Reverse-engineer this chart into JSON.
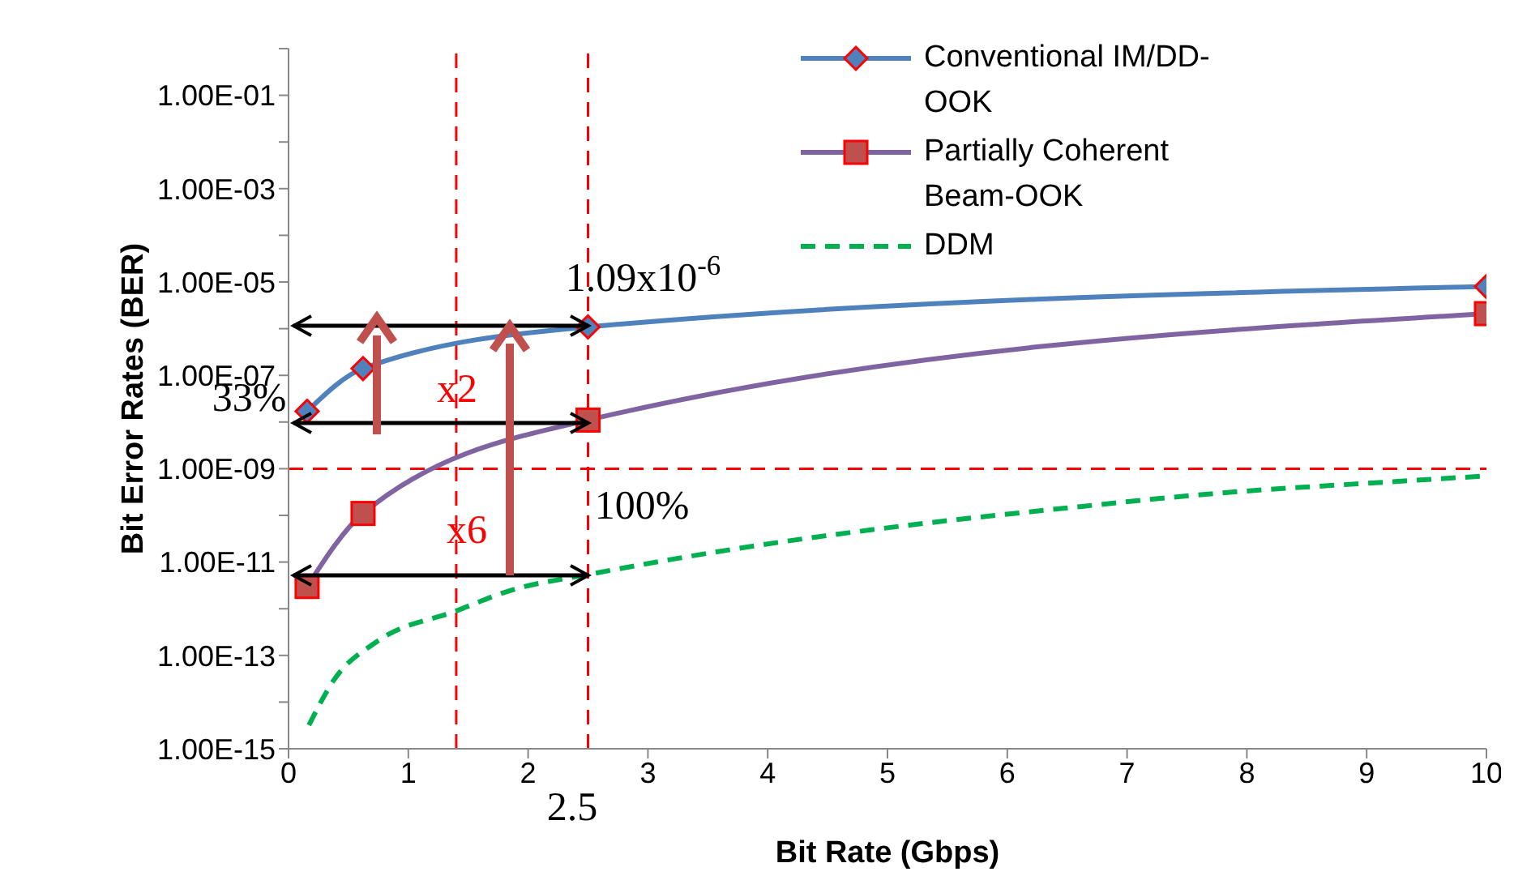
{
  "chart_data": {
    "type": "line",
    "xlabel": "Bit Rate (Gbps)",
    "ylabel": "Bit Error Rates (BER)",
    "log": "y",
    "xlim": [
      0,
      10
    ],
    "xticks": [
      0,
      1,
      2,
      3,
      4,
      5,
      6,
      7,
      8,
      9,
      10
    ],
    "ylim": [
      1e-15,
      1
    ],
    "yticks": [
      {
        "value": 1e-15,
        "label": "1.00E-15"
      },
      {
        "value": 1e-14,
        "label": null
      },
      {
        "value": 1e-13,
        "label": "1.00E-13"
      },
      {
        "value": 1e-12,
        "label": null
      },
      {
        "value": 1e-11,
        "label": "1.00E-11"
      },
      {
        "value": 1e-10,
        "label": null
      },
      {
        "value": 1e-09,
        "label": "1.00E-09"
      },
      {
        "value": 1e-08,
        "label": null
      },
      {
        "value": 1e-07,
        "label": "1.00E-07"
      },
      {
        "value": 1e-06,
        "label": null
      },
      {
        "value": 1e-05,
        "label": "1.00E-05"
      },
      {
        "value": 0.0001,
        "label": null
      },
      {
        "value": 0.001,
        "label": "1.00E-03"
      },
      {
        "value": 0.01,
        "label": null
      },
      {
        "value": 0.1,
        "label": "1.00E-01"
      },
      {
        "value": 1,
        "label": null
      }
    ],
    "grid": false,
    "legend": "top right",
    "series": [
      {
        "name": "Conventional IM/DD-OOK",
        "color": "#4f81bd",
        "marker": "diamond",
        "line_style": "solid",
        "x": [
          0.155,
          0.622,
          2.5,
          10
        ],
        "values": [
          1.7e-08,
          1.4e-07,
          1.09e-06,
          8e-06
        ]
      },
      {
        "name": "Partially Coherent Beam-OOK",
        "color": "#8064a2",
        "marker": "square",
        "line_style": "solid",
        "x": [
          0.155,
          0.622,
          2.5,
          10
        ],
        "values": [
          3e-12,
          1.1e-10,
          1.1e-08,
          2.1e-06
        ]
      },
      {
        "name": "DDM",
        "color": "#00b050",
        "marker": "none",
        "line_style": "dashed",
        "x": [
          0.17,
          0.38,
          0.74,
          1.4,
          1.86,
          2.52,
          3.83,
          5.14,
          6.45,
          7.77,
          9.07,
          10
        ],
        "values": [
          3.2e-15,
          3e-14,
          2e-13,
          9e-13,
          2.5e-12,
          5.5e-12,
          2.1e-11,
          6e-11,
          1.4e-10,
          3e-10,
          5e-10,
          7e-10
        ]
      }
    ],
    "ref_lines": [
      {
        "axis": "y",
        "value": 1e-09,
        "color": "#ff0000",
        "line_style": "dashed"
      },
      {
        "axis": "x",
        "value": 2.5,
        "color": "#ff0000",
        "line_style": "dashed"
      },
      {
        "axis": "x",
        "value": 1.4,
        "color": "#ff0000",
        "line_style": "dashed"
      }
    ],
    "annotations": [
      {
        "text": "1.09x10$^{-6}$",
        "x": 2.5,
        "y": 1.09e-06
      },
      {
        "text": "33%",
        "x": 2.5,
        "y": 1.09e-06
      },
      "x2",
      "x6",
      "100%",
      "2.5"
    ]
  }
}
